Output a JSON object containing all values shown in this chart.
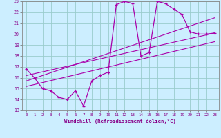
{
  "xlabel": "Windchill (Refroidissement éolien,°C)",
  "bg_color": "#cceeff",
  "line_color": "#aa00aa",
  "grid_color": "#99cccc",
  "xlim": [
    -0.5,
    23.5
  ],
  "ylim": [
    13,
    23
  ],
  "xticks": [
    0,
    1,
    2,
    3,
    4,
    5,
    6,
    7,
    8,
    9,
    10,
    11,
    12,
    13,
    14,
    15,
    16,
    17,
    18,
    19,
    20,
    21,
    22,
    23
  ],
  "yticks": [
    13,
    14,
    15,
    16,
    17,
    18,
    19,
    20,
    21,
    22,
    23
  ],
  "series1_x": [
    0,
    1,
    2,
    3,
    4,
    5,
    6,
    7,
    8,
    9,
    10,
    11,
    12,
    13,
    14,
    15,
    16,
    17,
    18,
    19,
    20,
    21,
    22,
    23
  ],
  "series1_y": [
    16.8,
    16.0,
    15.0,
    14.8,
    14.2,
    14.0,
    14.8,
    13.4,
    15.7,
    16.2,
    16.5,
    22.7,
    23.0,
    22.8,
    18.0,
    18.3,
    23.0,
    22.8,
    22.3,
    21.8,
    20.2,
    20.0,
    20.0,
    20.1
  ],
  "line2_x": [
    0,
    23
  ],
  "line2_y": [
    15.2,
    19.3
  ],
  "line3_x": [
    0,
    23
  ],
  "line3_y": [
    15.7,
    21.5
  ],
  "line4_x": [
    0,
    23
  ],
  "line4_y": [
    16.2,
    20.1
  ]
}
